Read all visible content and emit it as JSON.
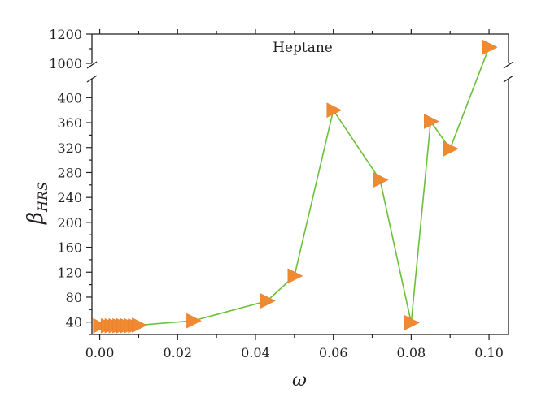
{
  "chart_data": {
    "type": "line",
    "annotation": "Heptane",
    "xlabel": "ω",
    "ylabel_main": "β",
    "ylabel_sub": "HRS",
    "xlim": [
      -0.002,
      0.105
    ],
    "x_ticks": [
      0.0,
      0.02,
      0.04,
      0.06,
      0.08,
      0.1
    ],
    "x_tick_labels": [
      "0.00",
      "0.02",
      "0.04",
      "0.06",
      "0.08",
      "0.10"
    ],
    "y_axis_broken": true,
    "y_lower_range": [
      20,
      420
    ],
    "y_upper_range": [
      1000,
      1200
    ],
    "y_ticks_lower": [
      40,
      80,
      120,
      160,
      200,
      240,
      280,
      320,
      360,
      400
    ],
    "y_ticks_upper": [
      1000,
      1200
    ],
    "grid": false,
    "series": [
      {
        "marker": "right-triangle",
        "color": "#f08a30",
        "line_color": "#6cbf3a",
        "x": [
          0.0,
          0.002,
          0.003,
          0.004,
          0.005,
          0.006,
          0.007,
          0.008,
          0.009,
          0.01,
          0.024,
          0.043,
          0.05,
          0.06,
          0.072,
          0.08,
          0.085,
          0.09,
          0.1
        ],
        "y": [
          34,
          34,
          34,
          34,
          34,
          34,
          34,
          34,
          34,
          35,
          42,
          74,
          114,
          380,
          268,
          39,
          362,
          318,
          1110
        ]
      }
    ]
  }
}
